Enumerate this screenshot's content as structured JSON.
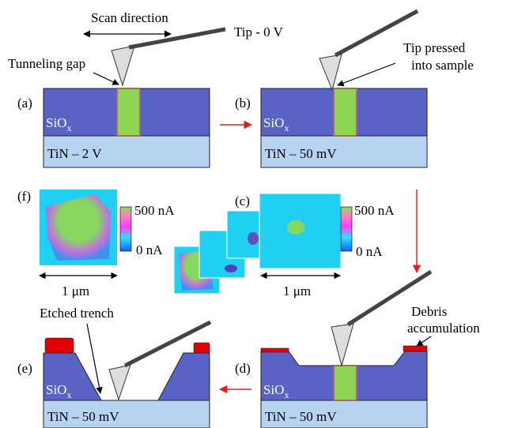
{
  "annotations": {
    "scan_direction": "Scan direction",
    "tip_voltage": "Tip - 0 V",
    "tunneling_gap": "Tunneling gap",
    "tip_pressed": [
      "Tip pressed",
      "into sample"
    ],
    "etched_trench": "Etched trench",
    "debris": [
      "Debris",
      "accumulation"
    ]
  },
  "panels": [
    {
      "label": "(a)",
      "oxide": "SiO",
      "oxide_sub": "x",
      "substrate": "TiN – 2 V"
    },
    {
      "label": "(b)",
      "oxide": "SiO",
      "oxide_sub": "x",
      "substrate": "TiN – 50 mV"
    },
    {
      "label": "(d)",
      "oxide": "SiO",
      "oxide_sub": "x",
      "substrate": "TiN – 50 mV"
    },
    {
      "label": "(e)",
      "oxide": "SiO",
      "oxide_sub": "x",
      "substrate": "TiN – 50 mV"
    }
  ],
  "maps": [
    {
      "label": "(f)",
      "colorbar_max": "500 nA",
      "colorbar_min": "0 nA",
      "scale": "1 μm"
    },
    {
      "label": "(c)",
      "colorbar_max": "500 nA",
      "colorbar_min": "0 nA",
      "scale": "1 μm"
    }
  ]
}
